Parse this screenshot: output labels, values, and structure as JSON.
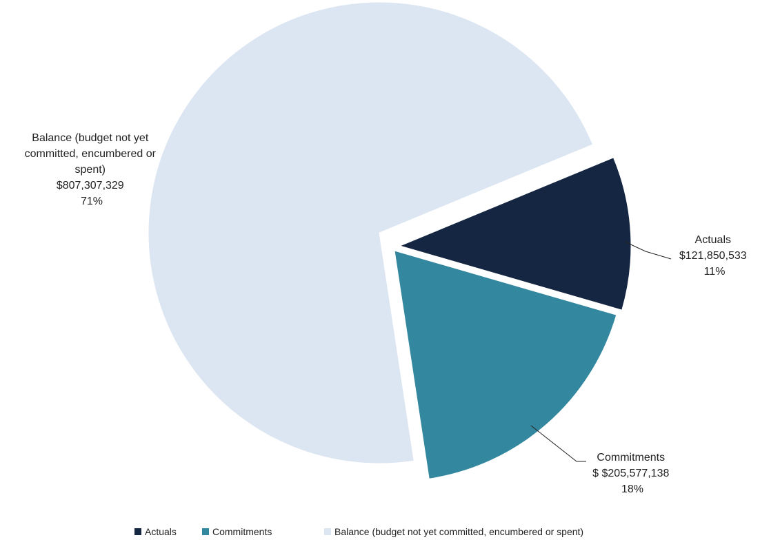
{
  "chart_data": {
    "type": "pie",
    "title": "",
    "categories": [
      "Actuals",
      "Commitments",
      "Balance (budget not yet committed, encumbered or spent)"
    ],
    "values": [
      121850533,
      205577138,
      807307329
    ],
    "labels": [
      {
        "lines": [
          "Actuals",
          "$121,850,533",
          "11%"
        ]
      },
      {
        "lines": [
          "Commitments",
          "$ $205,577,138",
          "18%"
        ]
      },
      {
        "lines": [
          "Balance (budget not yet",
          "committed, encumbered or",
          "spent)",
          "$807,307,329",
          "71%"
        ]
      }
    ],
    "colors": [
      "#142641",
      "#33879E",
      "#DCE6F2"
    ],
    "exploded": true,
    "legend": {
      "position": "bottom",
      "entries": [
        "Actuals",
        "Commitments",
        "Balance (budget not yet committed, encumbered or spent)"
      ]
    }
  }
}
